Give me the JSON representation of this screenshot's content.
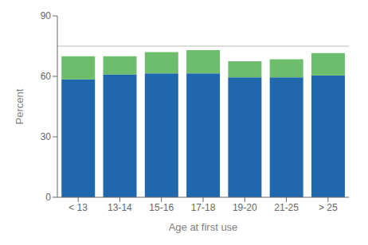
{
  "chart_data": {
    "type": "bar",
    "stacked": true,
    "categories": [
      "< 13",
      "13-14",
      "15-16",
      "17-18",
      "19-20",
      "21-25",
      "> 25"
    ],
    "series": [
      {
        "color": "#2068ae",
        "values": [
          58.5,
          61.0,
          61.5,
          61.5,
          59.5,
          59.5,
          60.5
        ]
      },
      {
        "color": "#6cbd6c",
        "values": [
          11.5,
          9.0,
          10.5,
          11.5,
          8.0,
          9.0,
          11.0
        ]
      }
    ],
    "xlabel": "Age at first use",
    "ylabel": "Percent",
    "ylim": [
      0,
      90
    ],
    "yticks": [
      0,
      30,
      60,
      90
    ],
    "grid": false,
    "reference_line": {
      "value": 75,
      "color": "#bbbbbb"
    }
  }
}
